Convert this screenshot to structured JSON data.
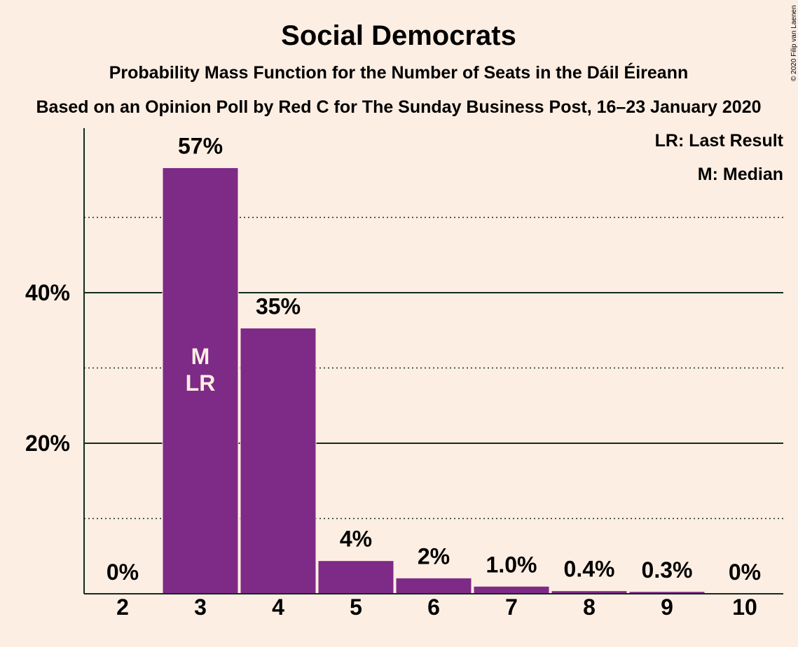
{
  "chart_data": {
    "type": "bar",
    "title": "Social Democrats",
    "subtitle": "Probability Mass Function for the Number of Seats in the Dáil Éireann",
    "subtitle2": "Based on an Opinion Poll by Red C for The Sunday Business Post, 16–23 January 2020",
    "copyright": "© 2020 Filip van Laenen",
    "legend": [
      "LR: Last Result",
      "M: Median"
    ],
    "legend_position": "top-right",
    "categories": [
      "2",
      "3",
      "4",
      "5",
      "6",
      "7",
      "8",
      "9",
      "10"
    ],
    "values": [
      0,
      56.6,
      35.3,
      4.4,
      2.1,
      1.0,
      0.4,
      0.3,
      0
    ],
    "data_labels": [
      "0%",
      "57%",
      "35%",
      "4%",
      "2%",
      "1.0%",
      "0.4%",
      "0.3%",
      "0%"
    ],
    "bar_annotations": {
      "3": [
        "M",
        "LR"
      ]
    },
    "yticks": [
      20,
      40
    ],
    "ytick_labels": [
      "20%",
      "40%"
    ],
    "minor_gridlines": [
      10,
      30,
      50
    ],
    "ylim": [
      0,
      62
    ],
    "bar_color": "#7E2A87",
    "background_color": "#FDEEE3",
    "text_color": "#122B1F"
  }
}
